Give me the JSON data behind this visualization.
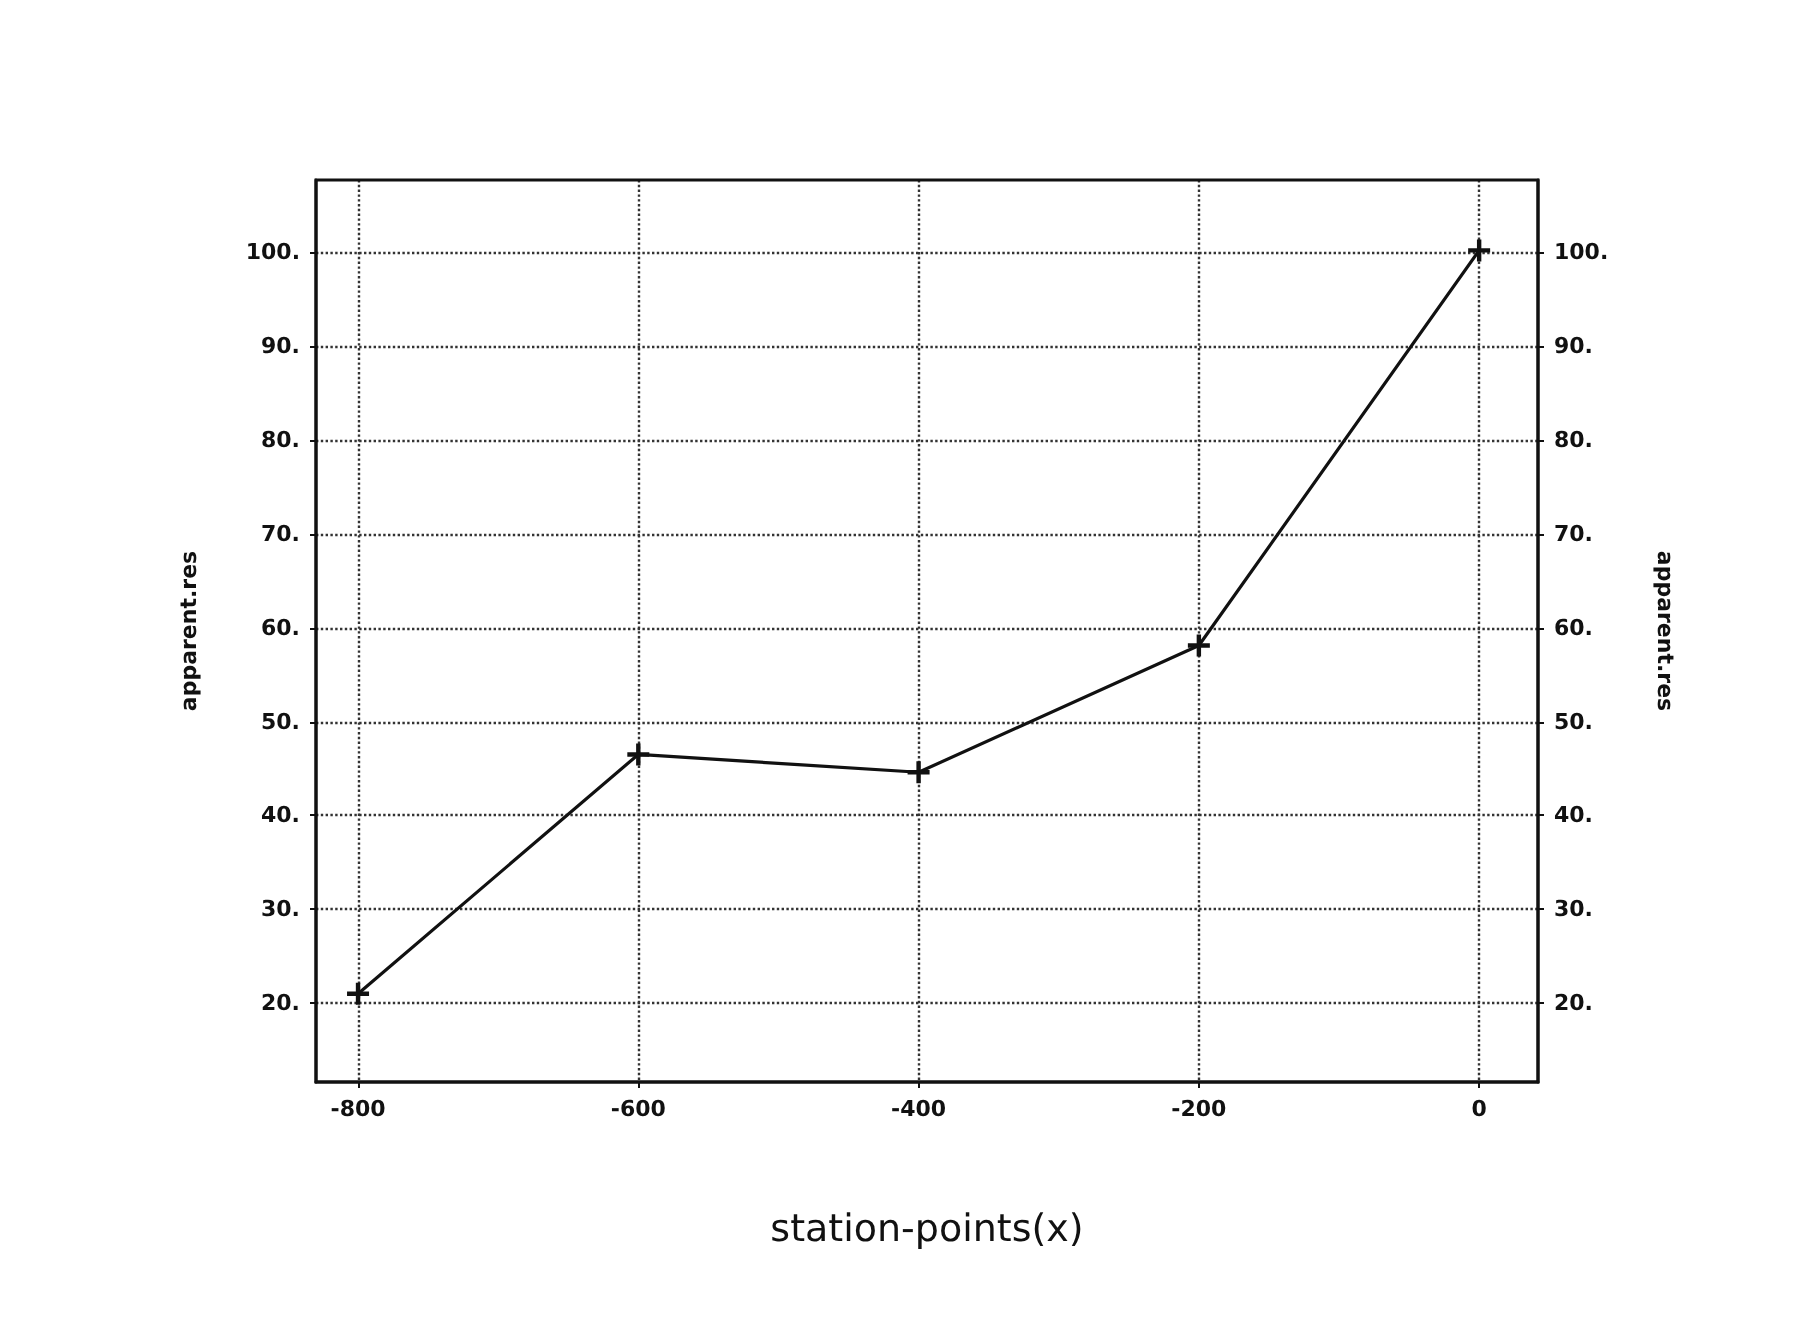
{
  "chart_data": {
    "type": "line",
    "xlabel": "station-points(x)",
    "ylabel": "apparent.res",
    "y2label": "apparent.res",
    "x": [
      -800,
      -600,
      -400,
      -200,
      0
    ],
    "series": [
      {
        "color": "#111111",
        "values": [
          21,
          46.5,
          44.6,
          58.1,
          100.2
        ]
      }
    ],
    "xlim": [
      -830,
      42
    ],
    "xticks": [
      -800,
      -600,
      -400,
      -200,
      0
    ],
    "ylim": [
      11.6,
      107.7
    ],
    "yticks": [
      {
        "value": 20,
        "label": "20."
      },
      {
        "value": 30,
        "label": "30."
      },
      {
        "value": 40,
        "label": "40."
      },
      {
        "value": 50,
        "label": "50."
      },
      {
        "value": 60,
        "label": "60."
      },
      {
        "value": 70,
        "label": "70."
      },
      {
        "value": 80,
        "label": "80."
      },
      {
        "value": 90,
        "label": "90."
      },
      {
        "value": 100,
        "label": "100."
      }
    ],
    "y2lim": [
      11.6,
      107.7
    ],
    "y2ticks": [
      {
        "value": 20,
        "label": "20."
      },
      {
        "value": 30,
        "label": "30."
      },
      {
        "value": 40,
        "label": "40."
      },
      {
        "value": 50,
        "label": "50."
      },
      {
        "value": 60,
        "label": "60."
      },
      {
        "value": 70,
        "label": "70."
      },
      {
        "value": 80,
        "label": "80."
      },
      {
        "value": 90,
        "label": "90."
      },
      {
        "value": 100,
        "label": "100."
      }
    ],
    "grid": true,
    "marker": "cross",
    "line_style": "solid"
  }
}
